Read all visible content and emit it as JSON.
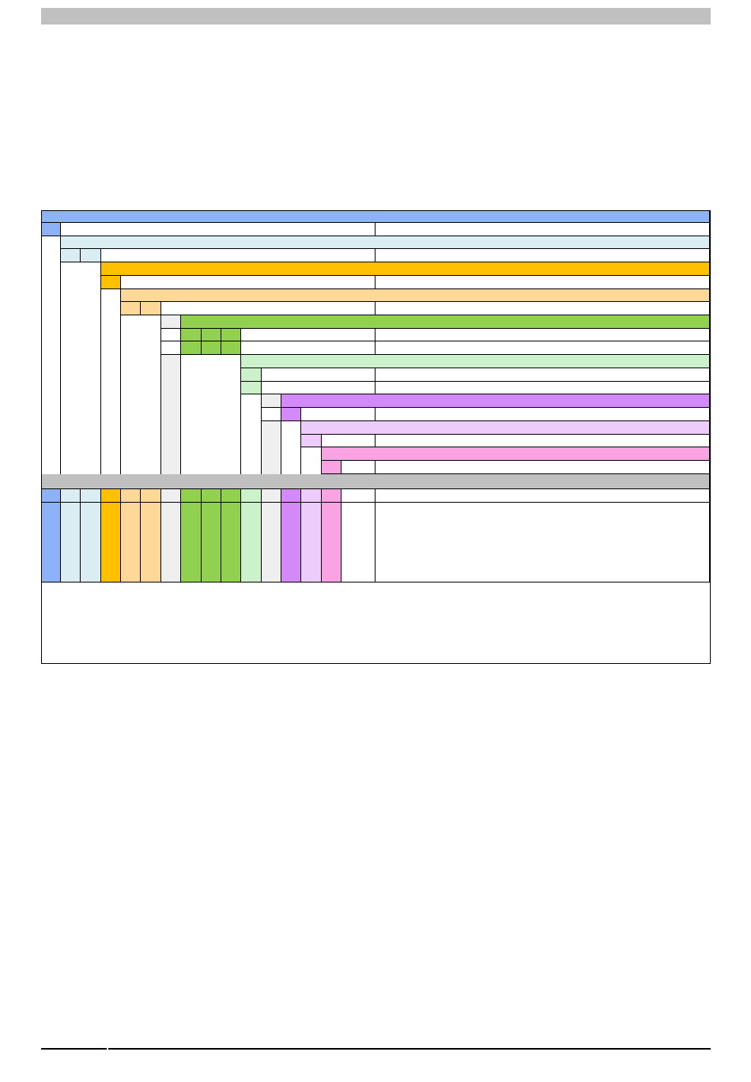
{
  "palette": {
    "blue": "#8db2f8",
    "lightblue": "#daedf3",
    "orange": "#ffc000",
    "peach": "#fdd898",
    "lightgray": "#efefef",
    "green": "#92d050",
    "lightgreen": "#ccf2cb",
    "purple": "#d38af8",
    "lavender": "#edccfb",
    "pink": "#f9a3e2",
    "gray": "#c0c0c0",
    "white": "#ffffff"
  },
  "table": {
    "cells": []
  }
}
